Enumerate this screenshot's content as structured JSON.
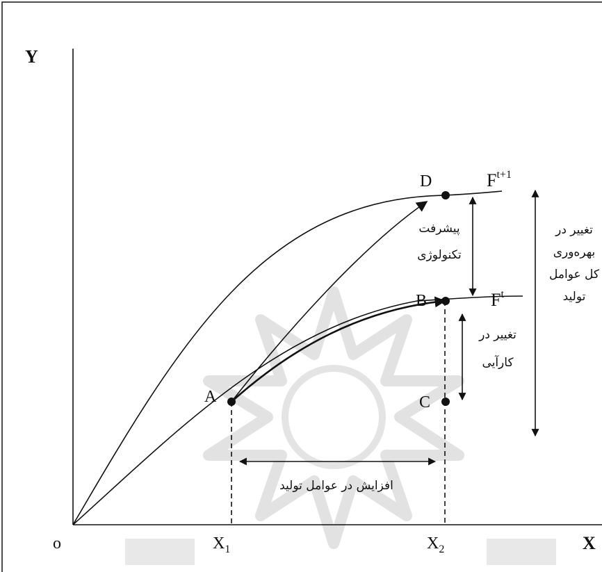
{
  "axes": {
    "y_label": "Y",
    "x_label": "X",
    "origin_label": "o"
  },
  "ticks": {
    "x1": "X",
    "x1_sub": "1",
    "x2": "X",
    "x2_sub": "2"
  },
  "points": {
    "A": "A",
    "B": "B",
    "C": "C",
    "D": "D"
  },
  "curves": {
    "upper": {
      "base": "F",
      "sup": "t+1"
    },
    "lower": {
      "base": "F",
      "sup": "t"
    }
  },
  "annotations": {
    "technology": [
      "پیشرفت",
      "تکنولوژی"
    ],
    "efficiency": [
      "تغییر در",
      "کارآیی"
    ],
    "inputs": "افزایش در عوامل تولید",
    "tfp": [
      "تغییر در",
      "بهره‌وری",
      "کل عوامل",
      "تولید"
    ]
  }
}
